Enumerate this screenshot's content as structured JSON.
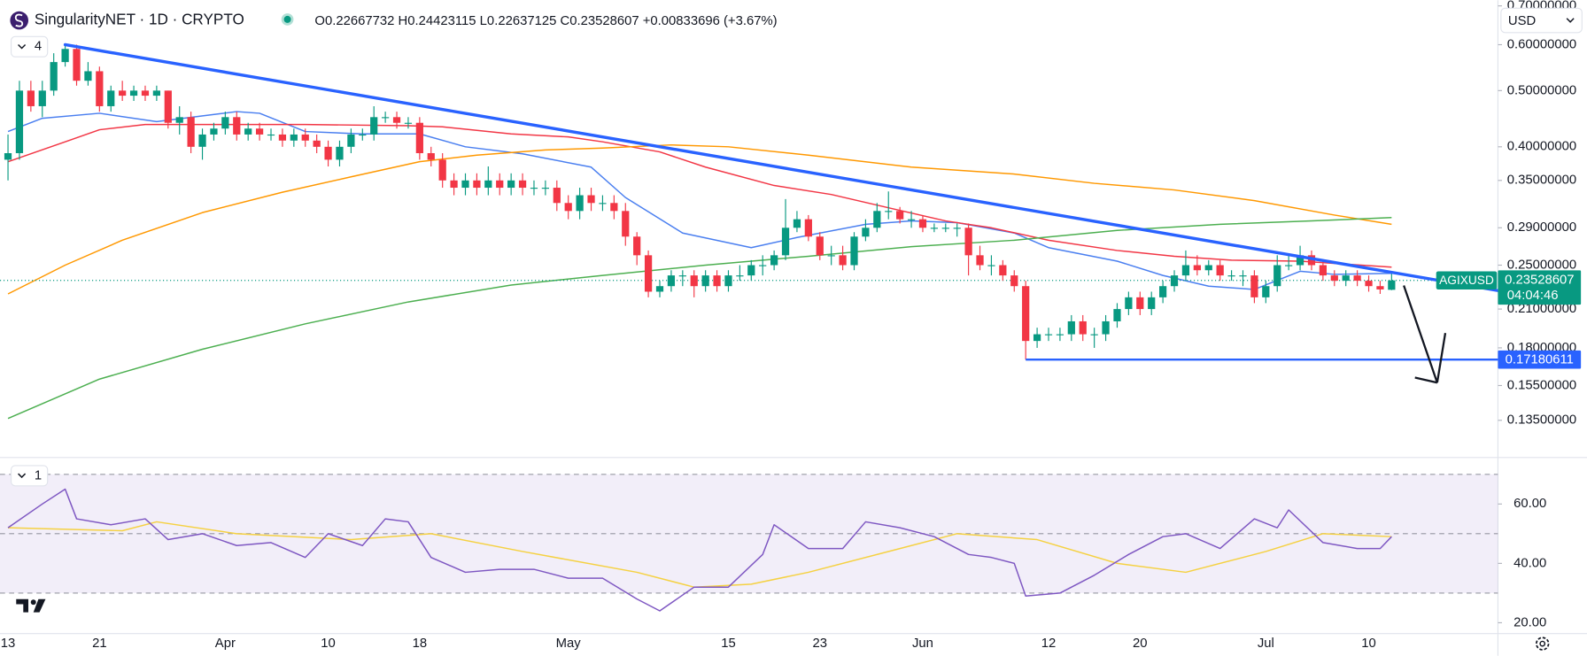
{
  "header": {
    "title": "SingularityNET · 1D · CRYPTO",
    "quote": "O0.22667732 H0.24423115 L0.22637125 C0.23528607 +0.00833696 (+3.67%)",
    "main_badge": "4",
    "rsi_badge": "1",
    "currency": "USD"
  },
  "chart_data": {
    "type": "candlestick",
    "log_scale": true,
    "grid": false,
    "up_color": "#089981",
    "down_color": "#f23645",
    "categories": [
      "13",
      null,
      null,
      null,
      null,
      null,
      null,
      null,
      "21",
      null,
      null,
      null,
      null,
      null,
      null,
      null,
      null,
      null,
      null,
      "Apr",
      null,
      null,
      null,
      null,
      null,
      null,
      null,
      null,
      "10",
      null,
      null,
      null,
      null,
      null,
      null,
      null,
      "18",
      null,
      null,
      null,
      null,
      null,
      null,
      null,
      null,
      null,
      null,
      null,
      null,
      "May",
      null,
      null,
      null,
      null,
      null,
      null,
      null,
      null,
      null,
      null,
      null,
      null,
      null,
      "15",
      null,
      null,
      null,
      null,
      null,
      null,
      null,
      "23",
      null,
      null,
      null,
      null,
      null,
      null,
      null,
      null,
      "Jun",
      null,
      null,
      null,
      null,
      null,
      null,
      null,
      null,
      null,
      null,
      "12",
      null,
      null,
      null,
      null,
      null,
      null,
      null,
      "20",
      null,
      null,
      null,
      null,
      null,
      null,
      null,
      null,
      null,
      null,
      "Jul",
      null,
      null,
      null,
      null,
      null,
      null,
      null,
      null,
      "10",
      null,
      null
    ],
    "xlim": [
      -0.7,
      130.3
    ],
    "ylim": [
      0.1174,
      0.716
    ],
    "yticks": [
      {
        "value": 0.7,
        "label": "0.70000000"
      },
      {
        "value": 0.6,
        "label": "0.60000000"
      },
      {
        "value": 0.5,
        "label": "0.50000000"
      },
      {
        "value": 0.4,
        "label": "0.40000000"
      },
      {
        "value": 0.35,
        "label": "0.35000000"
      },
      {
        "value": 0.29,
        "label": "0.29000000"
      },
      {
        "value": 0.25,
        "label": "0.25000000"
      },
      {
        "value": 0.21,
        "label": "0.21000000"
      },
      {
        "value": 0.18,
        "label": "0.18000000"
      },
      {
        "value": 0.155,
        "label": "0.15500000"
      },
      {
        "value": 0.135,
        "label": "0.13500000"
      }
    ],
    "ohlc": [
      [
        0.38,
        0.42,
        0.35,
        0.39
      ],
      [
        0.39,
        0.52,
        0.38,
        0.5
      ],
      [
        0.5,
        0.52,
        0.46,
        0.47
      ],
      [
        0.47,
        0.52,
        0.45,
        0.5
      ],
      [
        0.5,
        0.58,
        0.49,
        0.56
      ],
      [
        0.56,
        0.6,
        0.55,
        0.59
      ],
      [
        0.59,
        0.6,
        0.51,
        0.52
      ],
      [
        0.52,
        0.56,
        0.51,
        0.54
      ],
      [
        0.54,
        0.55,
        0.46,
        0.47
      ],
      [
        0.47,
        0.51,
        0.46,
        0.5
      ],
      [
        0.5,
        0.52,
        0.48,
        0.49
      ],
      [
        0.49,
        0.51,
        0.48,
        0.5
      ],
      [
        0.5,
        0.51,
        0.48,
        0.49
      ],
      [
        0.49,
        0.51,
        0.48,
        0.5
      ],
      [
        0.5,
        0.5,
        0.43,
        0.44
      ],
      [
        0.44,
        0.47,
        0.42,
        0.45
      ],
      [
        0.45,
        0.46,
        0.39,
        0.4
      ],
      [
        0.4,
        0.43,
        0.38,
        0.42
      ],
      [
        0.42,
        0.44,
        0.41,
        0.43
      ],
      [
        0.43,
        0.46,
        0.42,
        0.45
      ],
      [
        0.45,
        0.46,
        0.41,
        0.42
      ],
      [
        0.42,
        0.44,
        0.41,
        0.43
      ],
      [
        0.43,
        0.44,
        0.41,
        0.42
      ],
      [
        0.42,
        0.43,
        0.41,
        0.42
      ],
      [
        0.42,
        0.43,
        0.4,
        0.41
      ],
      [
        0.41,
        0.43,
        0.4,
        0.42
      ],
      [
        0.42,
        0.43,
        0.4,
        0.41
      ],
      [
        0.41,
        0.42,
        0.39,
        0.4
      ],
      [
        0.4,
        0.41,
        0.37,
        0.38
      ],
      [
        0.38,
        0.41,
        0.37,
        0.4
      ],
      [
        0.4,
        0.43,
        0.39,
        0.42
      ],
      [
        0.42,
        0.43,
        0.41,
        0.42
      ],
      [
        0.42,
        0.47,
        0.41,
        0.45
      ],
      [
        0.45,
        0.46,
        0.44,
        0.45
      ],
      [
        0.45,
        0.46,
        0.43,
        0.44
      ],
      [
        0.44,
        0.45,
        0.43,
        0.44
      ],
      [
        0.44,
        0.45,
        0.38,
        0.39
      ],
      [
        0.39,
        0.4,
        0.37,
        0.38
      ],
      [
        0.38,
        0.39,
        0.34,
        0.35
      ],
      [
        0.35,
        0.36,
        0.33,
        0.34
      ],
      [
        0.34,
        0.36,
        0.33,
        0.35
      ],
      [
        0.35,
        0.36,
        0.33,
        0.34
      ],
      [
        0.34,
        0.37,
        0.33,
        0.35
      ],
      [
        0.35,
        0.36,
        0.33,
        0.34
      ],
      [
        0.34,
        0.36,
        0.33,
        0.35
      ],
      [
        0.35,
        0.36,
        0.33,
        0.34
      ],
      [
        0.34,
        0.35,
        0.33,
        0.34
      ],
      [
        0.34,
        0.35,
        0.33,
        0.34
      ],
      [
        0.34,
        0.35,
        0.31,
        0.32
      ],
      [
        0.32,
        0.33,
        0.3,
        0.31
      ],
      [
        0.31,
        0.34,
        0.3,
        0.33
      ],
      [
        0.33,
        0.34,
        0.31,
        0.32
      ],
      [
        0.32,
        0.33,
        0.31,
        0.32
      ],
      [
        0.32,
        0.33,
        0.3,
        0.31
      ],
      [
        0.31,
        0.32,
        0.27,
        0.28
      ],
      [
        0.28,
        0.285,
        0.25,
        0.26
      ],
      [
        0.26,
        0.265,
        0.22,
        0.225
      ],
      [
        0.225,
        0.235,
        0.22,
        0.23
      ],
      [
        0.23,
        0.245,
        0.225,
        0.24
      ],
      [
        0.24,
        0.245,
        0.23,
        0.24
      ],
      [
        0.24,
        0.245,
        0.22,
        0.23
      ],
      [
        0.23,
        0.245,
        0.225,
        0.24
      ],
      [
        0.24,
        0.245,
        0.225,
        0.23
      ],
      [
        0.23,
        0.245,
        0.225,
        0.24
      ],
      [
        0.24,
        0.25,
        0.235,
        0.24
      ],
      [
        0.24,
        0.255,
        0.235,
        0.25
      ],
      [
        0.25,
        0.26,
        0.24,
        0.25
      ],
      [
        0.25,
        0.265,
        0.245,
        0.26
      ],
      [
        0.26,
        0.325,
        0.255,
        0.29
      ],
      [
        0.29,
        0.31,
        0.285,
        0.3
      ],
      [
        0.3,
        0.305,
        0.275,
        0.28
      ],
      [
        0.28,
        0.285,
        0.255,
        0.26
      ],
      [
        0.26,
        0.27,
        0.25,
        0.26
      ],
      [
        0.26,
        0.27,
        0.245,
        0.25
      ],
      [
        0.25,
        0.285,
        0.245,
        0.28
      ],
      [
        0.28,
        0.3,
        0.275,
        0.29
      ],
      [
        0.29,
        0.32,
        0.285,
        0.31
      ],
      [
        0.31,
        0.335,
        0.3,
        0.31
      ],
      [
        0.31,
        0.315,
        0.295,
        0.3
      ],
      [
        0.3,
        0.31,
        0.29,
        0.3
      ],
      [
        0.3,
        0.305,
        0.285,
        0.29
      ],
      [
        0.29,
        0.295,
        0.285,
        0.29
      ],
      [
        0.29,
        0.295,
        0.285,
        0.29
      ],
      [
        0.29,
        0.295,
        0.28,
        0.29
      ],
      [
        0.29,
        0.295,
        0.24,
        0.26
      ],
      [
        0.26,
        0.27,
        0.245,
        0.25
      ],
      [
        0.25,
        0.26,
        0.24,
        0.25
      ],
      [
        0.25,
        0.255,
        0.235,
        0.24
      ],
      [
        0.24,
        0.245,
        0.225,
        0.23
      ],
      [
        0.23,
        0.235,
        0.1718,
        0.185
      ],
      [
        0.185,
        0.195,
        0.18,
        0.19
      ],
      [
        0.19,
        0.195,
        0.185,
        0.19
      ],
      [
        0.19,
        0.195,
        0.185,
        0.19
      ],
      [
        0.19,
        0.205,
        0.185,
        0.2
      ],
      [
        0.2,
        0.205,
        0.185,
        0.19
      ],
      [
        0.19,
        0.195,
        0.18,
        0.19
      ],
      [
        0.19,
        0.205,
        0.185,
        0.2
      ],
      [
        0.2,
        0.215,
        0.195,
        0.21
      ],
      [
        0.21,
        0.225,
        0.205,
        0.22
      ],
      [
        0.22,
        0.225,
        0.205,
        0.21
      ],
      [
        0.21,
        0.225,
        0.205,
        0.22
      ],
      [
        0.22,
        0.235,
        0.215,
        0.23
      ],
      [
        0.23,
        0.245,
        0.225,
        0.24
      ],
      [
        0.24,
        0.265,
        0.235,
        0.25
      ],
      [
        0.25,
        0.26,
        0.24,
        0.245
      ],
      [
        0.245,
        0.255,
        0.24,
        0.25
      ],
      [
        0.25,
        0.255,
        0.235,
        0.24
      ],
      [
        0.24,
        0.245,
        0.235,
        0.24
      ],
      [
        0.24,
        0.245,
        0.23,
        0.24
      ],
      [
        0.24,
        0.245,
        0.215,
        0.22
      ],
      [
        0.22,
        0.235,
        0.215,
        0.23
      ],
      [
        0.23,
        0.26,
        0.225,
        0.25
      ],
      [
        0.25,
        0.26,
        0.245,
        0.25
      ],
      [
        0.25,
        0.27,
        0.245,
        0.26
      ],
      [
        0.26,
        0.265,
        0.245,
        0.25
      ],
      [
        0.25,
        0.255,
        0.235,
        0.24
      ],
      [
        0.24,
        0.245,
        0.23,
        0.235
      ],
      [
        0.235,
        0.245,
        0.23,
        0.24
      ],
      [
        0.24,
        0.245,
        0.23,
        0.235
      ],
      [
        0.235,
        0.24,
        0.225,
        0.23
      ],
      [
        0.23,
        0.235,
        0.223,
        0.227
      ],
      [
        0.22667732,
        0.24423115,
        0.22637125,
        0.23528607
      ]
    ],
    "series": [
      {
        "color": "#4a7ff0",
        "x": [
          0,
          3,
          8,
          13,
          20,
          22,
          26,
          31,
          36,
          40,
          45,
          51,
          54,
          59,
          65,
          69,
          75,
          79,
          83,
          88,
          91,
          97,
          101,
          105,
          109,
          113,
          116,
          121
        ],
        "values": [
          0.425,
          0.448,
          0.457,
          0.442,
          0.46,
          0.457,
          0.425,
          0.421,
          0.421,
          0.4,
          0.389,
          0.369,
          0.327,
          0.284,
          0.268,
          0.279,
          0.294,
          0.298,
          0.296,
          0.284,
          0.268,
          0.254,
          0.24,
          0.23,
          0.227,
          0.244,
          0.241,
          0.242
        ]
      },
      {
        "color": "#f23645",
        "x": [
          0,
          5,
          8,
          12,
          17,
          26,
          35,
          38,
          44,
          49,
          52,
          57,
          61,
          67,
          72,
          77,
          82,
          86,
          91,
          97,
          102,
          107,
          113,
          121
        ],
        "values": [
          0.377,
          0.408,
          0.428,
          0.437,
          0.437,
          0.437,
          0.435,
          0.433,
          0.421,
          0.416,
          0.408,
          0.392,
          0.369,
          0.343,
          0.331,
          0.314,
          0.298,
          0.29,
          0.276,
          0.265,
          0.259,
          0.255,
          0.254,
          0.248
        ]
      },
      {
        "color": "#ff9800",
        "x": [
          0,
          5,
          10,
          17,
          24,
          30,
          36,
          41,
          47,
          52,
          58,
          63,
          70,
          79,
          88,
          95,
          102,
          109,
          116,
          121
        ],
        "values": [
          0.223,
          0.25,
          0.276,
          0.308,
          0.334,
          0.355,
          0.377,
          0.387,
          0.395,
          0.398,
          0.403,
          0.4,
          0.387,
          0.369,
          0.359,
          0.346,
          0.337,
          0.323,
          0.305,
          0.294
        ]
      },
      {
        "color": "#4caf50",
        "x": [
          0,
          8,
          17,
          26,
          35,
          44,
          52,
          61,
          70,
          79,
          88,
          97,
          106,
          114,
          121
        ],
        "values": [
          0.136,
          0.159,
          0.179,
          0.198,
          0.216,
          0.231,
          0.24,
          0.25,
          0.259,
          0.269,
          0.276,
          0.287,
          0.294,
          0.298,
          0.302
        ]
      }
    ],
    "trendline": {
      "color": "#2962ff",
      "points": [
        [
          5,
          0.6
        ],
        [
          130.3,
          0.226
        ]
      ]
    },
    "hline": {
      "color": "#2962ff",
      "start": 89,
      "value": 0.17180611,
      "label": "0.17180611"
    },
    "price_tag": {
      "symbol": "AGIXUSD",
      "label": "0.23528607",
      "countdown": "04:04:46"
    },
    "rsi": {
      "line_color": "#7e57c2",
      "ma_color": "#f5d142",
      "ylim": [
        16.7,
        74.3
      ],
      "bands": [
        70,
        50,
        30
      ],
      "yticks": [
        {
          "value": 60,
          "label": "60.00"
        },
        {
          "value": 40,
          "label": "40.00"
        },
        {
          "value": 20,
          "label": "20.00"
        }
      ],
      "x": [
        0,
        3,
        5,
        6,
        9,
        12,
        14,
        17,
        20,
        23,
        26,
        28,
        31,
        33,
        35,
        37,
        40,
        43,
        46,
        49,
        52,
        55,
        57,
        60,
        63,
        66,
        67,
        70,
        73,
        75,
        78,
        81,
        84,
        86,
        88,
        89,
        92,
        95,
        98,
        101,
        103,
        106,
        109,
        111,
        112,
        115,
        118,
        120,
        121
      ],
      "values": [
        52,
        60,
        65,
        55,
        53,
        55,
        48,
        50,
        46,
        47,
        42,
        50,
        46,
        55,
        54,
        42,
        37,
        38,
        38,
        35,
        35,
        28,
        24,
        32,
        32,
        43,
        53,
        45,
        45,
        54,
        52,
        49,
        43,
        42,
        40,
        29,
        30,
        36,
        43,
        49,
        50,
        45,
        55,
        52,
        58,
        47,
        45,
        45,
        49
      ],
      "ma_x": [
        0,
        10,
        13,
        20,
        30,
        37,
        45,
        55,
        60,
        65,
        70,
        78,
        83,
        90,
        97,
        103,
        110,
        115,
        121
      ],
      "ma_values": [
        52,
        51,
        54,
        50,
        48,
        50,
        44,
        37,
        32,
        33,
        37,
        45,
        50,
        48,
        40,
        37,
        44,
        50,
        49
      ]
    }
  }
}
